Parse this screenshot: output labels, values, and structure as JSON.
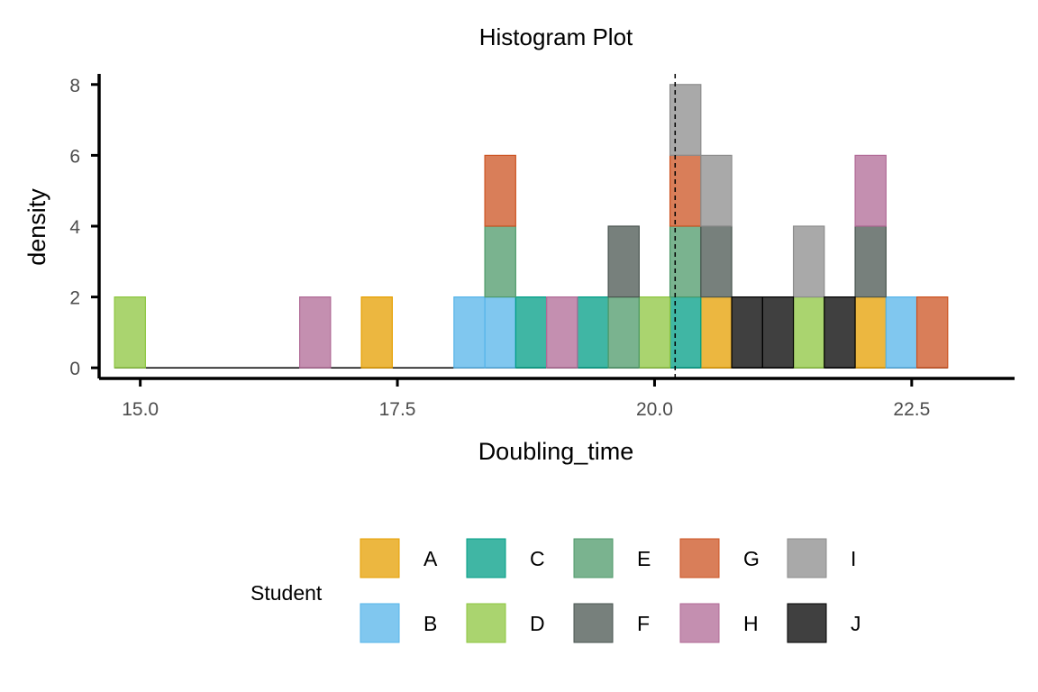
{
  "chart_data": {
    "type": "bar",
    "title": "Histogram Plot",
    "xlabel": "Doubling_time",
    "ylabel": "density",
    "xlim": [
      14.6,
      23.5
    ],
    "ylim": [
      -0.3,
      8.3
    ],
    "x_ticks": [
      "15.0",
      "17.5",
      "20.0",
      "22.5"
    ],
    "y_ticks": [
      "0",
      "2",
      "4",
      "6",
      "8"
    ],
    "bin_width": 0.3,
    "first_bin_start": 14.75,
    "num_bins": 27,
    "vline_x": 20.2,
    "grid": false,
    "legend_position": "bottom",
    "legend_title": "Student",
    "series": [
      {
        "name": "A",
        "color": "#E69F00",
        "values": [
          {
            "bin": 8,
            "y": 2
          },
          {
            "bin": 19,
            "y": 2
          },
          {
            "bin": 24,
            "y": 2
          }
        ]
      },
      {
        "name": "B",
        "color": "#56B4E9",
        "values": [
          {
            "bin": 11,
            "y": 2
          },
          {
            "bin": 12,
            "y": 2
          },
          {
            "bin": 25,
            "y": 2
          }
        ]
      },
      {
        "name": "C",
        "color": "#009E86",
        "values": [
          {
            "bin": 13,
            "y": 2
          },
          {
            "bin": 15,
            "y": 2
          },
          {
            "bin": 18,
            "y": 2
          }
        ]
      },
      {
        "name": "D",
        "color": "#8DC63F",
        "values": [
          {
            "bin": 0,
            "y": 2
          },
          {
            "bin": 17,
            "y": 2
          },
          {
            "bin": 22,
            "y": 2
          }
        ]
      },
      {
        "name": "E",
        "color": "#4E9A6A",
        "values": [
          {
            "bin": 12,
            "y": 2
          },
          {
            "bin": 16,
            "y": 2
          },
          {
            "bin": 18,
            "y": 2
          }
        ]
      },
      {
        "name": "F",
        "color": "#4A5550",
        "values": [
          {
            "bin": 16,
            "y": 2
          },
          {
            "bin": 19,
            "y": 2
          },
          {
            "bin": 24,
            "y": 2
          }
        ]
      },
      {
        "name": "G",
        "color": "#CC5322",
        "values": [
          {
            "bin": 12,
            "y": 2
          },
          {
            "bin": 18,
            "y": 2
          },
          {
            "bin": 26,
            "y": 2
          }
        ]
      },
      {
        "name": "H",
        "color": "#B06A96",
        "values": [
          {
            "bin": 6,
            "y": 2
          },
          {
            "bin": 14,
            "y": 2
          },
          {
            "bin": 24,
            "y": 2
          }
        ]
      },
      {
        "name": "I",
        "color": "#8C8C8C",
        "values": [
          {
            "bin": 18,
            "y": 2
          },
          {
            "bin": 19,
            "y": 2
          },
          {
            "bin": 22,
            "y": 2
          }
        ]
      },
      {
        "name": "J",
        "color": "#000000",
        "values": [
          {
            "bin": 20,
            "y": 2
          },
          {
            "bin": 21,
            "y": 2
          },
          {
            "bin": 23,
            "y": 2
          }
        ]
      }
    ]
  }
}
